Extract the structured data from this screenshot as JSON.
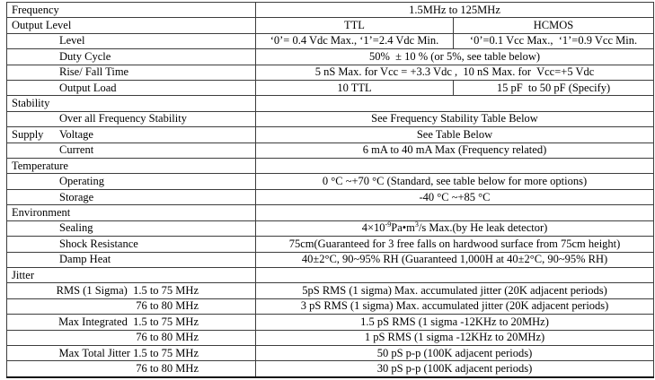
{
  "table": {
    "rows": [
      {
        "label": "Frequency",
        "value": "1.5MHz to 125MHz"
      },
      {
        "label": "Output Level",
        "value_ttl": "TTL",
        "value_hcmos": "HCMOS"
      },
      {
        "label": "Level",
        "value_ttl": "‘0’= 0.4 Vdc Max., ‘1’=2.4 Vdc Min.",
        "value_hcmos": "‘0’=0.1 Vcc Max.,  ‘1’=0.9 Vcc Min."
      },
      {
        "label": "Duty Cycle",
        "value": "50%  ± 10 % (or 5%, see table below)"
      },
      {
        "label": "Rise/ Fall Time",
        "value": "5 nS Max. for Vcc = +3.3 Vdc ,  10 nS Max. for  Vcc=+5 Vdc"
      },
      {
        "label": "Output Load",
        "value_ttl": "10 TTL",
        "value_hcmos": "15 pF  to 50 pF (Specify)"
      },
      {
        "label": "Stability",
        "value": ""
      },
      {
        "label": "Over all Frequency Stability",
        "value": "See Frequency Stability Table Below"
      },
      {
        "group": "Supply",
        "label": "Voltage",
        "value": "See Table Below"
      },
      {
        "label": "Current",
        "value": "6 mA to 40 mA Max (Frequency related)"
      },
      {
        "label": "Temperature",
        "value": ""
      },
      {
        "label": "Operating",
        "value": "0 °C ~+70 °C (Standard, see table below for more options)"
      },
      {
        "label": "Storage",
        "value": "-40 °C ~+85 °C"
      },
      {
        "label": "Environment",
        "value": ""
      },
      {
        "label": "Sealing",
        "value_prefix": "4×10",
        "value_sup1": "-9",
        "value_mid": "Pa•m",
        "value_sup2": "3",
        "value_suffix": "/s Max.(by He leak detector)"
      },
      {
        "label": "Shock Resistance",
        "value": "75cm(Guaranteed for 3 free falls on hardwood surface from 75cm height)"
      },
      {
        "label": "Damp Heat",
        "value": "40±2°C, 90~95% RH (Guaranteed 1,000H at 40±2°C, 90~95% RH)"
      },
      {
        "label": "Jitter",
        "value": ""
      },
      {
        "label": "RMS (1 Sigma)  1.5 to 75 MHz",
        "value": "5pS RMS (1 sigma) Max. accumulated jitter (20K adjacent periods)"
      },
      {
        "label": "76 to 80 MHz",
        "value": "3 pS RMS (1 sigma) Max. accumulated jitter (20K adjacent periods)"
      },
      {
        "label": "Max Integrated  1.5 to 75 MHz",
        "value": "1.5 pS RMS (1 sigma -12KHz to 20MHz)"
      },
      {
        "label": "76 to 80 MHz",
        "value": "1 pS RMS (1 sigma -12KHz to 20MHz)"
      },
      {
        "label": "Max Total Jitter 1.5 to 75 MHz",
        "value": "50 pS p-p (100K adjacent periods)"
      },
      {
        "label": "76 to 80 MHz",
        "value": "30 pS p-p (100K adjacent periods)"
      }
    ]
  }
}
